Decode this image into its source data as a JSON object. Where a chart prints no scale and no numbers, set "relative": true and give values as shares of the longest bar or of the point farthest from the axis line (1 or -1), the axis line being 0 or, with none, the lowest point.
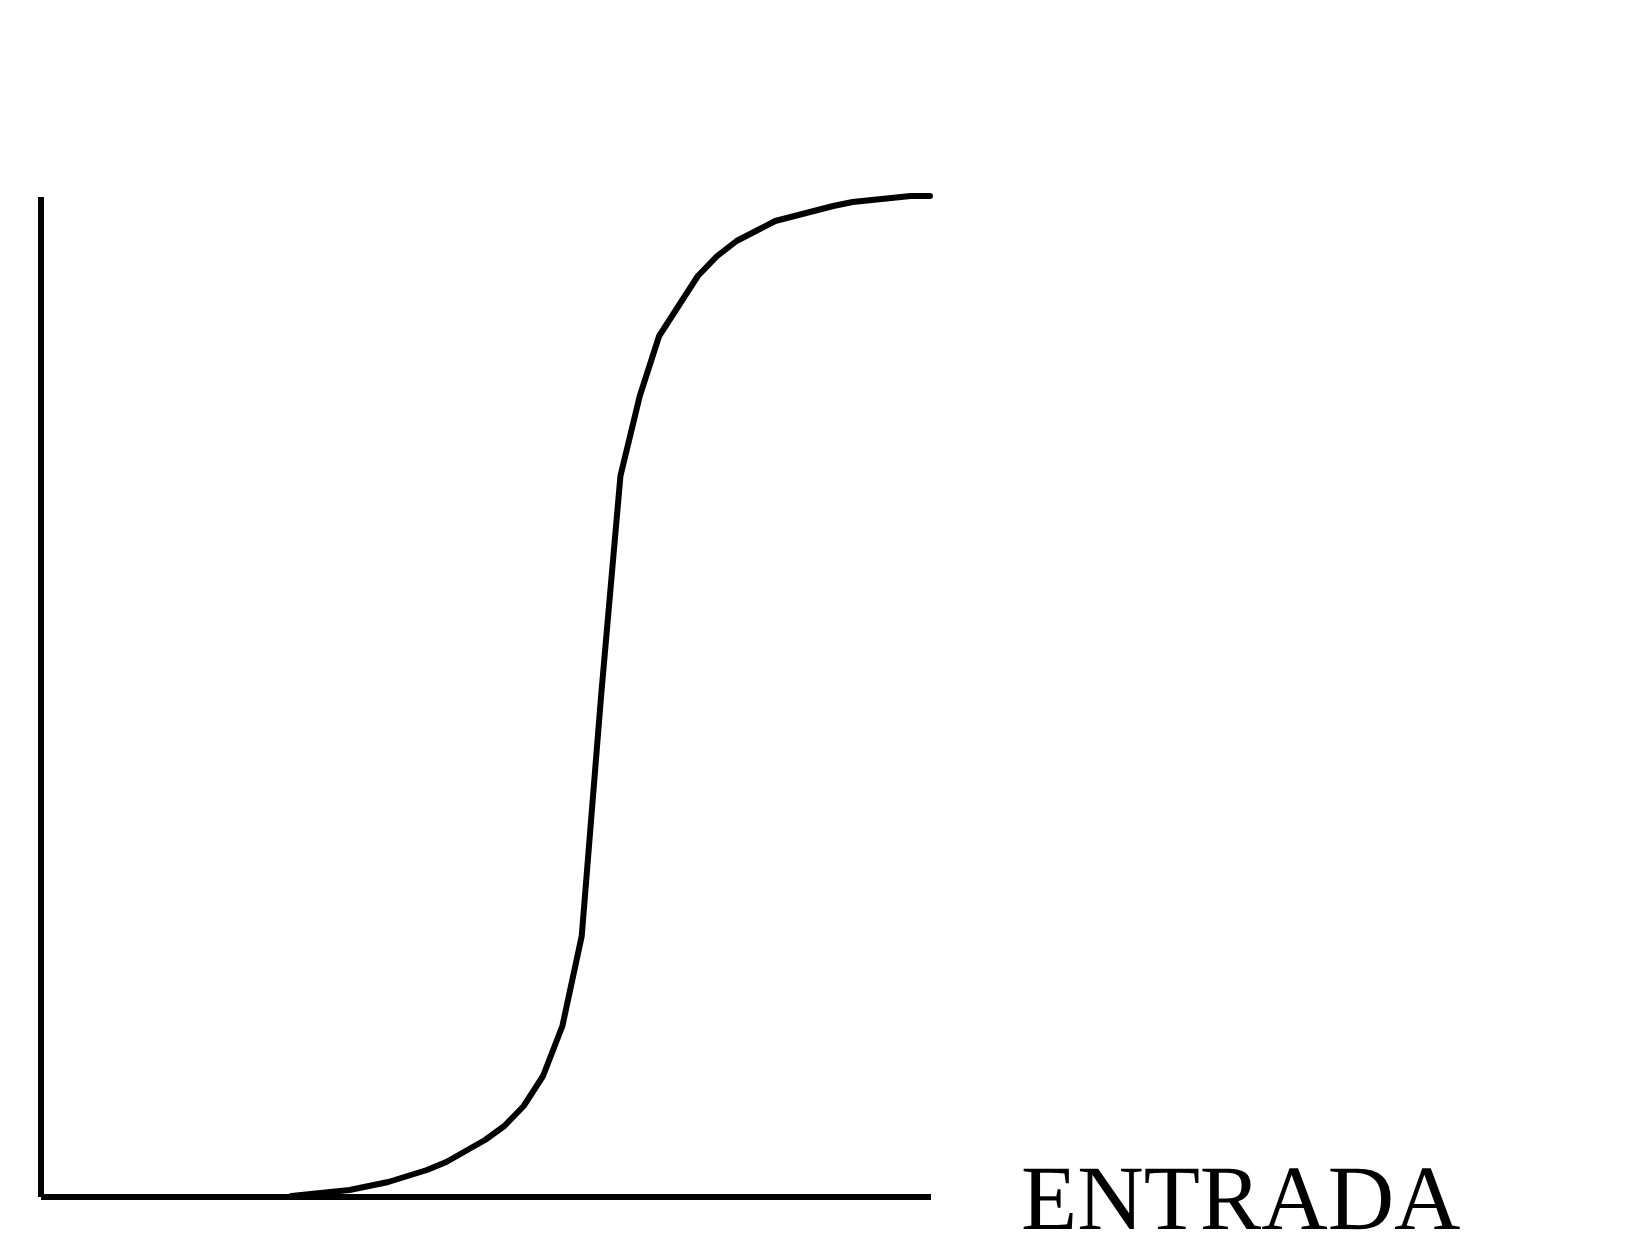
{
  "chart_data": {
    "type": "line",
    "relative": true,
    "xlabel": "ENTRADA",
    "grid": false,
    "legend": false,
    "marker": "none",
    "line_style": "solid",
    "categories": [
      null,
      null,
      null,
      null,
      null,
      null,
      null,
      null,
      null,
      null,
      null,
      null,
      null,
      null,
      null,
      null,
      null,
      null,
      null,
      null,
      null,
      null,
      null,
      null,
      null,
      null,
      null,
      null,
      null,
      null,
      null,
      null,
      null,
      null,
      null,
      null,
      null,
      null,
      null,
      null,
      null,
      null,
      null,
      null,
      null,
      null,
      null
    ],
    "series": [
      {
        "color": "#000000",
        "values": [
          null,
          null,
          null,
          null,
          null,
          null,
          null,
          null,
          null,
          null,
          null,
          null,
          null,
          0,
          0.002,
          0.004,
          0.006,
          0.01,
          0.014,
          0.02,
          0.026,
          0.034,
          0.045,
          0.056,
          0.07,
          0.09,
          0.12,
          0.17,
          0.26,
          0.5,
          0.72,
          0.8,
          0.86,
          0.89,
          0.92,
          0.94,
          0.955,
          0.965,
          0.975,
          0.98,
          0.985,
          0.99,
          0.994,
          0.996,
          0.998,
          1,
          1
        ]
      }
    ]
  }
}
